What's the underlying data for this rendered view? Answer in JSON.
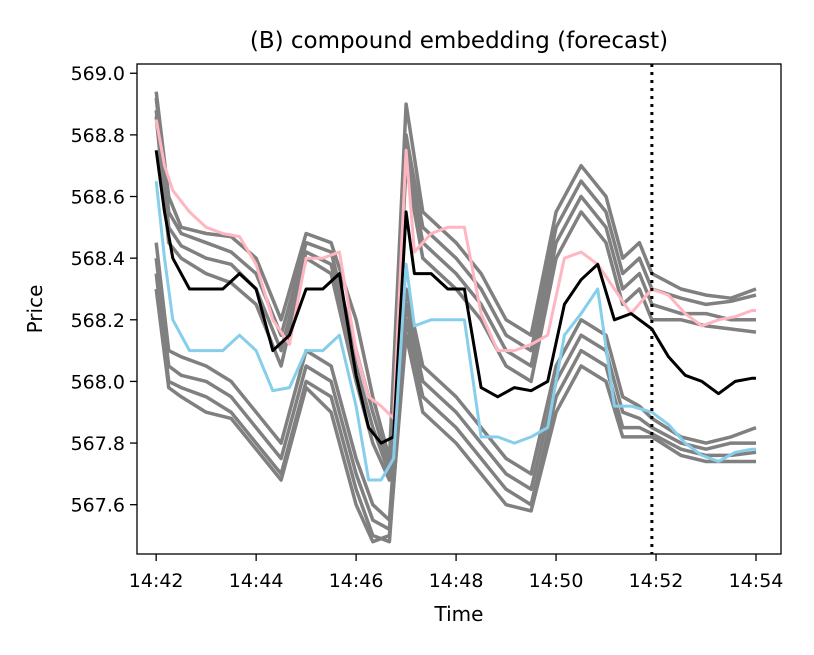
{
  "chart_data": {
    "type": "line",
    "title": "(B) compound embedding (forecast)",
    "xlabel": "Time",
    "ylabel": "Price",
    "x_ticks": [
      "14:42",
      "14:44",
      "14:46",
      "14:48",
      "14:50",
      "14:52",
      "14:54"
    ],
    "y_ticks": [
      "567.6",
      "567.8",
      "568.0",
      "568.2",
      "568.4",
      "568.6",
      "568.8",
      "569.0"
    ],
    "xlim": [
      "14:41:37",
      "14:54:30"
    ],
    "ylim": [
      567.44,
      569.03
    ],
    "forecast_start": "14:51:55",
    "grid": false,
    "legend": "none",
    "colors": {
      "samples": "#808080",
      "median": "#000000",
      "upper_quantile": "#ffb6c1",
      "lower_quantile": "#87ceeb",
      "forecast_line": "#000000"
    },
    "series": [
      {
        "role": "sample",
        "x": [
          "14:42:00",
          "14:42:15",
          "14:42:30",
          "14:43:00",
          "14:43:30",
          "14:44:00",
          "14:44:30",
          "14:45:00",
          "14:45:30",
          "14:46:00",
          "14:46:20",
          "14:46:40",
          "14:47:00",
          "14:47:20",
          "14:47:40",
          "14:48:00",
          "14:48:30",
          "14:49:00",
          "14:49:30",
          "14:50:00",
          "14:50:30",
          "14:51:00",
          "14:51:20",
          "14:51:40",
          "14:51:55",
          "14:52:30",
          "14:53:00",
          "14:53:30",
          "14:54:00"
        ],
        "values": [
          568.94,
          568.6,
          568.5,
          568.48,
          568.47,
          568.4,
          568.2,
          568.48,
          568.45,
          568.2,
          567.95,
          567.75,
          568.9,
          568.55,
          568.5,
          568.45,
          568.35,
          568.2,
          568.15,
          568.55,
          568.7,
          568.6,
          568.4,
          568.45,
          568.35,
          568.3,
          568.28,
          568.27,
          568.3
        ]
      },
      {
        "role": "sample",
        "x": [
          "14:42:00",
          "14:42:15",
          "14:42:30",
          "14:43:00",
          "14:43:30",
          "14:44:00",
          "14:44:30",
          "14:45:00",
          "14:45:30",
          "14:46:00",
          "14:46:20",
          "14:46:40",
          "14:47:00",
          "14:47:20",
          "14:47:40",
          "14:48:00",
          "14:48:30",
          "14:49:00",
          "14:49:30",
          "14:50:00",
          "14:50:30",
          "14:51:00",
          "14:51:20",
          "14:51:40",
          "14:51:55",
          "14:52:30",
          "14:53:00",
          "14:53:30",
          "14:54:00"
        ],
        "values": [
          568.92,
          568.55,
          568.48,
          568.45,
          568.42,
          568.35,
          568.15,
          568.45,
          568.42,
          568.1,
          567.9,
          567.72,
          568.8,
          568.5,
          568.45,
          568.4,
          568.3,
          568.15,
          568.1,
          568.5,
          568.65,
          568.55,
          568.35,
          568.4,
          568.3,
          568.27,
          568.25,
          568.26,
          568.28
        ]
      },
      {
        "role": "sample",
        "x": [
          "14:42:00",
          "14:42:15",
          "14:42:30",
          "14:43:00",
          "14:43:30",
          "14:44:00",
          "14:44:30",
          "14:45:00",
          "14:45:30",
          "14:46:00",
          "14:46:20",
          "14:46:40",
          "14:47:00",
          "14:47:20",
          "14:47:40",
          "14:48:00",
          "14:48:30",
          "14:49:00",
          "14:49:30",
          "14:50:00",
          "14:50:30",
          "14:51:00",
          "14:51:20",
          "14:51:40",
          "14:51:55",
          "14:52:30",
          "14:53:00",
          "14:53:30",
          "14:54:00"
        ],
        "values": [
          568.88,
          568.5,
          568.44,
          568.4,
          568.38,
          568.3,
          568.1,
          568.42,
          568.38,
          568.05,
          567.85,
          567.7,
          568.75,
          568.45,
          568.4,
          568.35,
          568.25,
          568.1,
          568.05,
          568.45,
          568.6,
          568.5,
          568.3,
          568.35,
          568.25,
          568.22,
          568.22,
          568.2,
          568.2
        ]
      },
      {
        "role": "sample",
        "x": [
          "14:42:00",
          "14:42:15",
          "14:42:30",
          "14:43:00",
          "14:43:30",
          "14:44:00",
          "14:44:30",
          "14:45:00",
          "14:45:30",
          "14:46:00",
          "14:46:20",
          "14:46:40",
          "14:47:00",
          "14:47:20",
          "14:47:40",
          "14:48:00",
          "14:48:30",
          "14:49:00",
          "14:49:30",
          "14:50:00",
          "14:50:30",
          "14:51:00",
          "14:51:20",
          "14:51:40",
          "14:51:55",
          "14:52:30",
          "14:53:00",
          "14:53:30",
          "14:54:00"
        ],
        "values": [
          568.86,
          568.45,
          568.4,
          568.35,
          568.32,
          568.25,
          568.05,
          568.4,
          568.35,
          568.0,
          567.8,
          567.68,
          568.7,
          568.4,
          568.35,
          568.3,
          568.2,
          568.05,
          568.0,
          568.4,
          568.55,
          568.45,
          568.25,
          568.3,
          568.2,
          568.2,
          568.18,
          568.17,
          568.16
        ]
      },
      {
        "role": "sample",
        "x": [
          "14:42:00",
          "14:42:15",
          "14:42:30",
          "14:43:00",
          "14:43:30",
          "14:44:00",
          "14:44:30",
          "14:45:00",
          "14:45:30",
          "14:46:00",
          "14:46:20",
          "14:46:40",
          "14:47:00",
          "14:47:20",
          "14:47:40",
          "14:48:00",
          "14:48:30",
          "14:49:00",
          "14:49:30",
          "14:50:00",
          "14:50:30",
          "14:51:00",
          "14:51:20",
          "14:51:40",
          "14:51:55",
          "14:52:30",
          "14:53:00",
          "14:53:30",
          "14:54:00"
        ],
        "values": [
          568.45,
          568.1,
          568.08,
          568.05,
          568.0,
          567.9,
          567.8,
          568.1,
          568.05,
          567.75,
          567.6,
          567.55,
          568.3,
          568.05,
          568.0,
          567.95,
          567.85,
          567.75,
          567.7,
          568.05,
          568.2,
          568.15,
          567.95,
          567.92,
          567.88,
          567.82,
          567.8,
          567.82,
          567.85
        ]
      },
      {
        "role": "sample",
        "x": [
          "14:42:00",
          "14:42:15",
          "14:42:30",
          "14:43:00",
          "14:43:30",
          "14:44:00",
          "14:44:30",
          "14:45:00",
          "14:45:30",
          "14:46:00",
          "14:46:20",
          "14:46:40",
          "14:47:00",
          "14:47:20",
          "14:47:40",
          "14:48:00",
          "14:48:30",
          "14:49:00",
          "14:49:30",
          "14:50:00",
          "14:50:30",
          "14:51:00",
          "14:51:20",
          "14:51:40",
          "14:51:55",
          "14:52:30",
          "14:53:00",
          "14:53:30",
          "14:54:00"
        ],
        "values": [
          568.4,
          568.05,
          568.02,
          568.0,
          567.95,
          567.85,
          567.75,
          568.05,
          568.0,
          567.7,
          567.55,
          567.52,
          568.25,
          568.0,
          567.95,
          567.9,
          567.8,
          567.7,
          567.65,
          568.0,
          568.15,
          568.1,
          567.9,
          567.88,
          567.85,
          567.8,
          567.78,
          567.8,
          567.8
        ]
      },
      {
        "role": "sample",
        "x": [
          "14:42:00",
          "14:42:15",
          "14:42:30",
          "14:43:00",
          "14:43:30",
          "14:44:00",
          "14:44:30",
          "14:45:00",
          "14:45:30",
          "14:46:00",
          "14:46:20",
          "14:46:40",
          "14:47:00",
          "14:47:20",
          "14:47:40",
          "14:48:00",
          "14:48:30",
          "14:49:00",
          "14:49:30",
          "14:50:00",
          "14:50:30",
          "14:51:00",
          "14:51:20",
          "14:51:40",
          "14:51:55",
          "14:52:30",
          "14:53:00",
          "14:53:30",
          "14:54:00"
        ],
        "values": [
          568.35,
          568.0,
          567.98,
          567.95,
          567.9,
          567.8,
          567.7,
          568.0,
          567.95,
          567.65,
          567.5,
          567.48,
          568.2,
          567.95,
          567.9,
          567.85,
          567.75,
          567.65,
          567.6,
          567.95,
          568.1,
          568.05,
          567.85,
          567.85,
          567.83,
          567.78,
          567.76,
          567.76,
          567.77
        ]
      },
      {
        "role": "sample",
        "x": [
          "14:42:00",
          "14:42:15",
          "14:42:30",
          "14:43:00",
          "14:43:30",
          "14:44:00",
          "14:44:30",
          "14:45:00",
          "14:45:30",
          "14:46:00",
          "14:46:20",
          "14:46:40",
          "14:47:00",
          "14:47:20",
          "14:47:40",
          "14:48:00",
          "14:48:30",
          "14:49:00",
          "14:49:30",
          "14:50:00",
          "14:50:30",
          "14:51:00",
          "14:51:20",
          "14:51:40",
          "14:51:55",
          "14:52:30",
          "14:53:00",
          "14:53:30",
          "14:54:00"
        ],
        "values": [
          568.3,
          567.98,
          567.95,
          567.9,
          567.88,
          567.78,
          567.68,
          567.98,
          567.9,
          567.6,
          567.48,
          567.5,
          568.15,
          567.9,
          567.85,
          567.8,
          567.7,
          567.6,
          567.58,
          567.9,
          568.05,
          568.0,
          567.82,
          567.82,
          567.82,
          567.76,
          567.74,
          567.74,
          567.74
        ]
      },
      {
        "role": "upper_quantile",
        "name": "",
        "x": [
          "14:42:00",
          "14:42:10",
          "14:42:20",
          "14:42:40",
          "14:43:00",
          "14:43:20",
          "14:43:40",
          "14:44:00",
          "14:44:20",
          "14:44:40",
          "14:45:00",
          "14:45:20",
          "14:45:40",
          "14:46:00",
          "14:46:15",
          "14:46:30",
          "14:46:45",
          "14:47:00",
          "14:47:10",
          "14:47:30",
          "14:47:50",
          "14:48:10",
          "14:48:30",
          "14:48:50",
          "14:49:10",
          "14:49:30",
          "14:49:50",
          "14:50:10",
          "14:50:30",
          "14:50:50",
          "14:51:10",
          "14:51:30",
          "14:51:55",
          "14:52:15",
          "14:52:35",
          "14:52:55",
          "14:53:15",
          "14:53:35",
          "14:53:55",
          "14:54:00"
        ],
        "values": [
          568.85,
          568.7,
          568.62,
          568.55,
          568.5,
          568.48,
          568.47,
          568.38,
          568.2,
          568.12,
          568.4,
          568.4,
          568.42,
          568.1,
          567.95,
          567.92,
          567.88,
          568.75,
          568.42,
          568.48,
          568.5,
          568.5,
          568.22,
          568.1,
          568.1,
          568.12,
          568.15,
          568.4,
          568.42,
          568.38,
          568.3,
          568.22,
          568.3,
          568.28,
          568.22,
          568.18,
          568.2,
          568.21,
          568.23,
          568.23
        ]
      },
      {
        "role": "median",
        "name": "",
        "x": [
          "14:42:00",
          "14:42:10",
          "14:42:20",
          "14:42:40",
          "14:43:00",
          "14:43:20",
          "14:43:40",
          "14:44:00",
          "14:44:20",
          "14:44:40",
          "14:45:00",
          "14:45:20",
          "14:45:40",
          "14:46:00",
          "14:46:15",
          "14:46:30",
          "14:46:45",
          "14:47:00",
          "14:47:10",
          "14:47:30",
          "14:47:50",
          "14:48:10",
          "14:48:30",
          "14:48:50",
          "14:49:10",
          "14:49:30",
          "14:49:50",
          "14:50:10",
          "14:50:30",
          "14:50:50",
          "14:51:10",
          "14:51:30",
          "14:51:55",
          "14:52:15",
          "14:52:35",
          "14:52:55",
          "14:53:15",
          "14:53:35",
          "14:53:55",
          "14:54:00"
        ],
        "values": [
          568.75,
          568.55,
          568.4,
          568.3,
          568.3,
          568.3,
          568.35,
          568.3,
          568.1,
          568.15,
          568.3,
          568.3,
          568.35,
          568.02,
          567.85,
          567.8,
          567.82,
          568.55,
          568.35,
          568.35,
          568.3,
          568.3,
          567.98,
          567.95,
          567.98,
          567.97,
          568.0,
          568.25,
          568.33,
          568.38,
          568.2,
          568.22,
          568.17,
          568.08,
          568.02,
          568.0,
          567.96,
          568.0,
          568.01,
          568.01
        ]
      },
      {
        "role": "lower_quantile",
        "name": "",
        "x": [
          "14:42:00",
          "14:42:10",
          "14:42:20",
          "14:42:40",
          "14:43:00",
          "14:43:20",
          "14:43:40",
          "14:44:00",
          "14:44:20",
          "14:44:40",
          "14:45:00",
          "14:45:20",
          "14:45:40",
          "14:46:00",
          "14:46:15",
          "14:46:30",
          "14:46:45",
          "14:47:00",
          "14:47:10",
          "14:47:30",
          "14:47:50",
          "14:48:10",
          "14:48:30",
          "14:48:50",
          "14:49:10",
          "14:49:30",
          "14:49:50",
          "14:50:10",
          "14:50:30",
          "14:50:50",
          "14:51:10",
          "14:51:30",
          "14:51:55",
          "14:52:15",
          "14:52:35",
          "14:52:55",
          "14:53:15",
          "14:53:35",
          "14:53:55",
          "14:54:00"
        ],
        "values": [
          568.65,
          568.4,
          568.2,
          568.1,
          568.1,
          568.1,
          568.15,
          568.1,
          567.97,
          567.98,
          568.1,
          568.1,
          568.15,
          567.92,
          567.68,
          567.68,
          567.75,
          568.38,
          568.18,
          568.2,
          568.2,
          568.2,
          567.82,
          567.82,
          567.8,
          567.82,
          567.85,
          568.15,
          568.22,
          568.3,
          567.92,
          567.92,
          567.9,
          567.86,
          567.8,
          567.76,
          567.74,
          567.77,
          567.78,
          567.78
        ]
      }
    ]
  }
}
